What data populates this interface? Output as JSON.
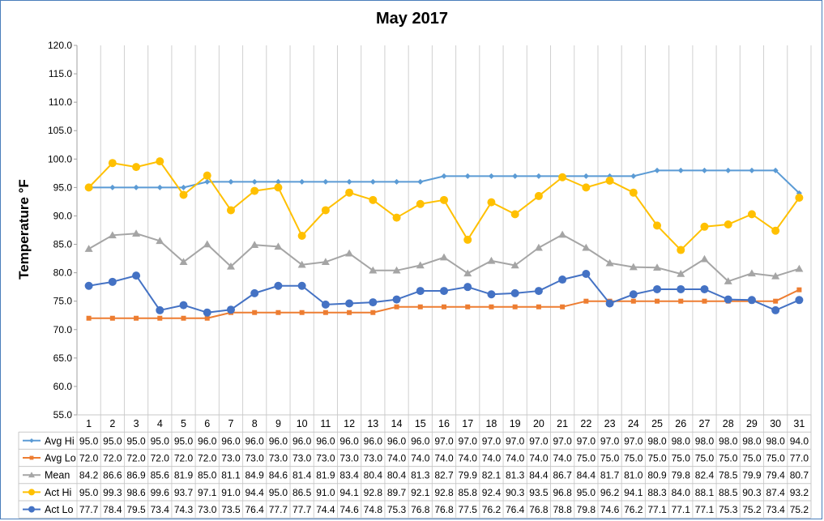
{
  "chart_data": {
    "type": "line",
    "title": "May 2017",
    "ylabel": "Temperature °F",
    "xlabel": "",
    "ylim": [
      55,
      120
    ],
    "y_ticks": [
      "55.0",
      "60.0",
      "65.0",
      "70.0",
      "75.0",
      "80.0",
      "85.0",
      "90.0",
      "95.0",
      "100.0",
      "105.0",
      "110.0",
      "115.0",
      "120.0"
    ],
    "categories": [
      "1",
      "2",
      "3",
      "4",
      "5",
      "6",
      "7",
      "8",
      "9",
      "10",
      "11",
      "12",
      "13",
      "14",
      "15",
      "16",
      "17",
      "18",
      "19",
      "20",
      "21",
      "22",
      "23",
      "24",
      "25",
      "26",
      "27",
      "28",
      "29",
      "30",
      "31"
    ],
    "grid": "vertical",
    "legend": "data-table",
    "series": [
      {
        "name": "Avg Hi",
        "color": "#5b9bd5",
        "marker": "diamond",
        "values": [
          95.0,
          95.0,
          95.0,
          95.0,
          95.0,
          96.0,
          96.0,
          96.0,
          96.0,
          96.0,
          96.0,
          96.0,
          96.0,
          96.0,
          96.0,
          97.0,
          97.0,
          97.0,
          97.0,
          97.0,
          97.0,
          97.0,
          97.0,
          97.0,
          98.0,
          98.0,
          98.0,
          98.0,
          98.0,
          98.0,
          94.0
        ]
      },
      {
        "name": "Avg Lo",
        "color": "#ed7d31",
        "marker": "square",
        "values": [
          72.0,
          72.0,
          72.0,
          72.0,
          72.0,
          72.0,
          73.0,
          73.0,
          73.0,
          73.0,
          73.0,
          73.0,
          73.0,
          74.0,
          74.0,
          74.0,
          74.0,
          74.0,
          74.0,
          74.0,
          74.0,
          75.0,
          75.0,
          75.0,
          75.0,
          75.0,
          75.0,
          75.0,
          75.0,
          75.0,
          77.0
        ]
      },
      {
        "name": "Mean",
        "color": "#a5a5a5",
        "marker": "triangle",
        "values": [
          84.2,
          86.6,
          86.9,
          85.6,
          81.9,
          85.0,
          81.1,
          84.9,
          84.6,
          81.4,
          81.9,
          83.4,
          80.4,
          80.4,
          81.3,
          82.7,
          79.9,
          82.1,
          81.3,
          84.4,
          86.7,
          84.4,
          81.7,
          81.0,
          80.9,
          79.8,
          82.4,
          78.5,
          79.9,
          79.4,
          80.7
        ]
      },
      {
        "name": "Act Hi",
        "color": "#ffc000",
        "marker": "circle",
        "values": [
          95.0,
          99.3,
          98.6,
          99.6,
          93.7,
          97.1,
          91.0,
          94.4,
          95.0,
          86.5,
          91.0,
          94.1,
          92.8,
          89.7,
          92.1,
          92.8,
          85.8,
          92.4,
          90.3,
          93.5,
          96.8,
          95.0,
          96.2,
          94.1,
          88.3,
          84.0,
          88.1,
          88.5,
          90.3,
          87.4,
          93.2
        ]
      },
      {
        "name": "Act Lo",
        "color": "#4472c4",
        "marker": "circle",
        "values": [
          77.7,
          78.4,
          79.5,
          73.4,
          74.3,
          73.0,
          73.5,
          76.4,
          77.7,
          77.7,
          74.4,
          74.6,
          74.8,
          75.3,
          76.8,
          76.8,
          77.5,
          76.2,
          76.4,
          76.8,
          78.8,
          79.8,
          74.6,
          76.2,
          77.1,
          77.1,
          77.1,
          75.3,
          75.2,
          73.4,
          75.2
        ]
      }
    ]
  }
}
